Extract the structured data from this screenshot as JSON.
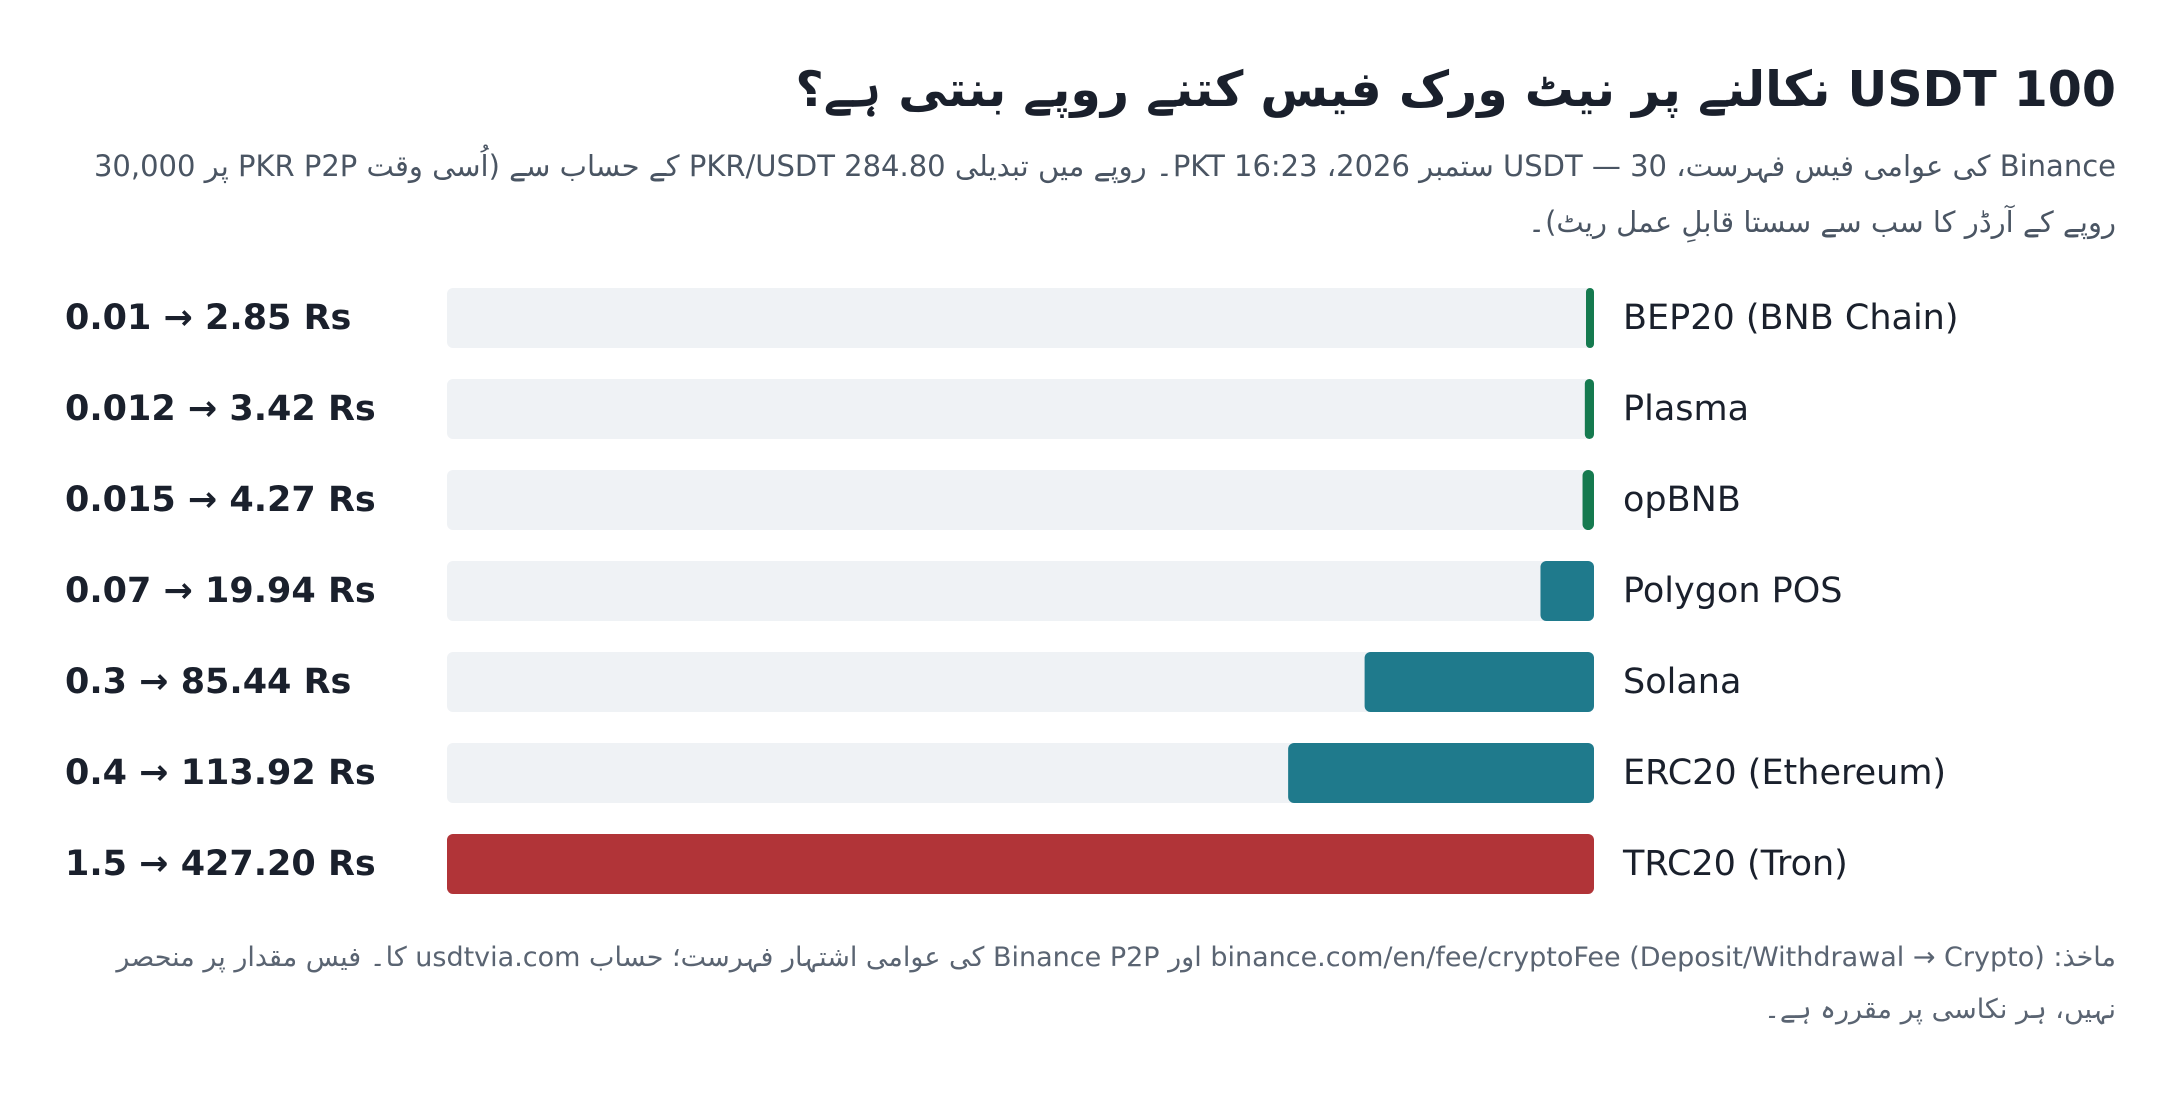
{
  "header": {
    "title": "100 USDT نکالنے پر نیٹ ورک فیس کتنے روپے بنتی ہے؟",
    "subtitle": "Binance کی عوامی فیس فہرست، USDT — 30 ستمبر 2026، PKT 16:23۔ روپے میں تبدیلی PKR/USDT 284.80 کے حساب سے (اُسی وقت PKR P2P پر 30,000 روپے کے آرڈر کا سب سے سستا قابلِ عمل ریٹ)۔"
  },
  "footer": {
    "source": "ماخذ: binance.com/en/fee/cryptoFee (Deposit/Withdrawal → Crypto) اور Binance P2P کی عوامی اشتہار فہرست؛ حساب usdtvia.com کا۔ فیس مقدار پر منحصر نہیں، ہر نکاسی پر مقررہ ہے۔"
  },
  "colors": {
    "cheap": "#157a4f",
    "mid": "#1f7a8c",
    "expensive": "#b13438",
    "track": "#eff2f5"
  },
  "chart_data": {
    "type": "bar",
    "orientation": "horizontal",
    "categories": [
      "BEP20 (BNB Chain)",
      "Plasma",
      "opBNB",
      "Polygon POS",
      "Solana",
      "ERC20 (Ethereum)",
      "TRC20 (Tron)"
    ],
    "values_usdt": [
      0.01,
      0.012,
      0.015,
      0.07,
      0.3,
      0.4,
      1.5
    ],
    "values_rs": [
      2.85,
      3.42,
      4.27,
      19.94,
      85.44,
      113.92,
      427.2
    ],
    "value_labels": [
      "0.01 → 2.85 Rs",
      "0.012 → 3.42 Rs",
      "0.015 → 4.27 Rs",
      "0.07 → 19.94 Rs",
      "0.3 → 85.44 Rs",
      "0.4 → 113.92 Rs",
      "1.5 → 427.20 Rs"
    ],
    "bar_colors": [
      "#157a4f",
      "#157a4f",
      "#157a4f",
      "#1f7a8c",
      "#1f7a8c",
      "#1f7a8c",
      "#b13438"
    ],
    "xlim": [
      0,
      1.5
    ],
    "bar_direction": "right-to-left",
    "grid": false,
    "legend": "none"
  }
}
